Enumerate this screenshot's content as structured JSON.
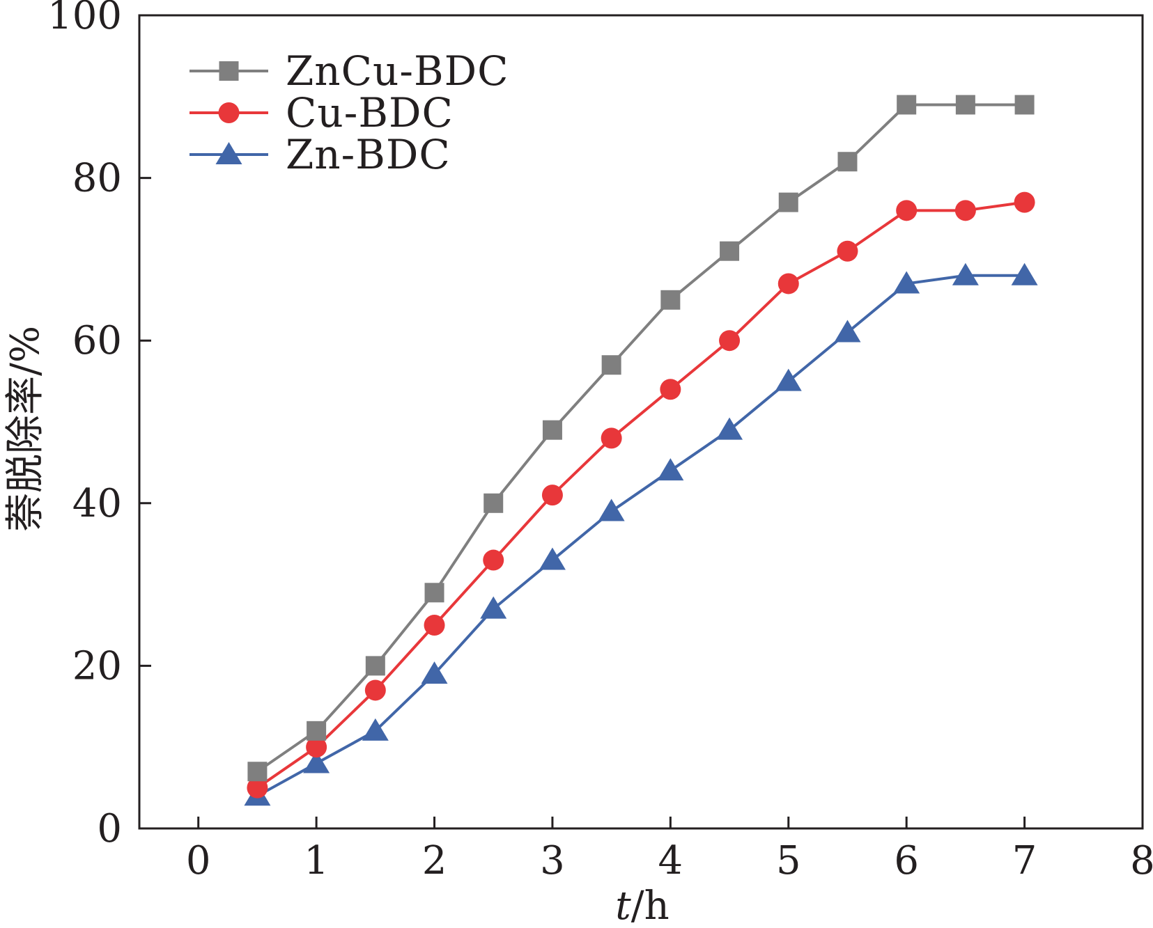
{
  "chart_data": {
    "type": "line",
    "title": "",
    "xlabel": {
      "italic": "t",
      "rest": "/h"
    },
    "ylabel": "萘脱除率/%",
    "xlim": [
      -0.5,
      8
    ],
    "ylim": [
      0,
      100
    ],
    "xticks": [
      0,
      1,
      2,
      3,
      4,
      5,
      6,
      7,
      8
    ],
    "yticks": [
      0,
      20,
      40,
      60,
      80,
      100
    ],
    "grid": false,
    "legend_position": "top-left",
    "x": [
      0.5,
      1,
      1.5,
      2,
      2.5,
      3,
      3.5,
      4,
      4.5,
      5,
      5.5,
      6,
      6.5,
      7
    ],
    "series": [
      {
        "name": "ZnCu-BDC",
        "color": "#7f7f7f",
        "marker": "square",
        "values": [
          7,
          12,
          20,
          29,
          40,
          49,
          57,
          65,
          71,
          77,
          82,
          89,
          89,
          89
        ]
      },
      {
        "name": "Cu-BDC",
        "color": "#e8373a",
        "marker": "circle",
        "values": [
          5,
          10,
          17,
          25,
          33,
          41,
          48,
          54,
          60,
          67,
          71,
          76,
          76,
          77
        ]
      },
      {
        "name": "Zn-BDC",
        "color": "#4166a8",
        "marker": "triangle",
        "values": [
          4,
          8,
          12,
          19,
          27,
          33,
          39,
          44,
          49,
          55,
          61,
          67,
          68,
          68
        ]
      }
    ]
  }
}
